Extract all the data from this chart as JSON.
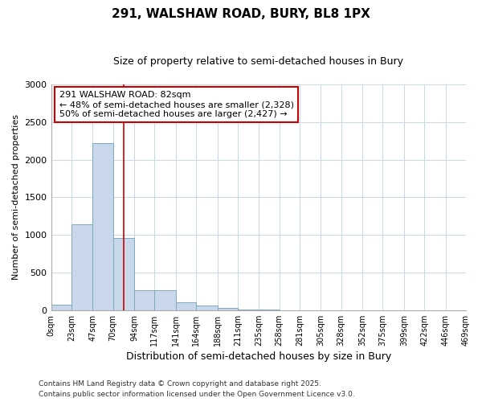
{
  "title": "291, WALSHAW ROAD, BURY, BL8 1PX",
  "subtitle": "Size of property relative to semi-detached houses in Bury",
  "xlabel": "Distribution of semi-detached houses by size in Bury",
  "ylabel": "Number of semi-detached properties",
  "footnote1": "Contains HM Land Registry data © Crown copyright and database right 2025.",
  "footnote2": "Contains public sector information licensed under the Open Government Licence v3.0.",
  "annotation_title": "291 WALSHAW ROAD: 82sqm",
  "annotation_line1": "← 48% of semi-detached houses are smaller (2,328)",
  "annotation_line2": "50% of semi-detached houses are larger (2,427) →",
  "property_size": 82,
  "bar_edges": [
    0,
    23,
    47,
    70,
    94,
    117,
    141,
    164,
    188,
    211,
    235,
    258,
    281,
    305,
    328,
    352,
    375,
    399,
    422,
    446,
    469
  ],
  "bar_heights": [
    75,
    1140,
    2220,
    960,
    265,
    270,
    110,
    60,
    28,
    8,
    4,
    2,
    1,
    1,
    0,
    0,
    0,
    0,
    0,
    0
  ],
  "bar_color": "#c8d8ea",
  "bar_edge_color": "#7aabbf",
  "red_line_color": "#cc0000",
  "annotation_box_color": "#cc0000",
  "grid_color": "#c8d8ea",
  "background_color": "#ffffff",
  "plot_bg_color": "#ffffff",
  "ylim": [
    0,
    3000
  ],
  "yticks": [
    0,
    500,
    1000,
    1500,
    2000,
    2500,
    3000
  ],
  "tick_labels": [
    "0sqm",
    "23sqm",
    "47sqm",
    "70sqm",
    "94sqm",
    "117sqm",
    "141sqm",
    "164sqm",
    "188sqm",
    "211sqm",
    "235sqm",
    "258sqm",
    "281sqm",
    "305sqm",
    "328sqm",
    "352sqm",
    "375sqm",
    "399sqm",
    "422sqm",
    "446sqm",
    "469sqm"
  ]
}
